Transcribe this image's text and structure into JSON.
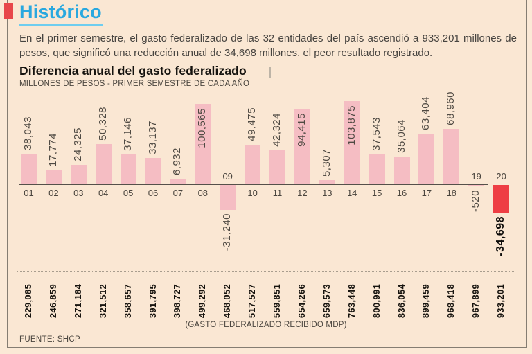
{
  "header": {
    "title": "Histórico"
  },
  "intro": "En el primer semestre, el gasto federalizado de las 32 entidades del país ascendió a 933,201 millones de pesos, que significó una reducción anual de 34,698 millones, el peor resultado registrado.",
  "chart_data": {
    "type": "bar",
    "title": "Diferencia anual del gasto federalizado",
    "subtitle": "MILLONES DE PESOS - PRIMER SEMESTRE DE CADA AÑO",
    "categories": [
      "01",
      "02",
      "03",
      "04",
      "05",
      "06",
      "07",
      "08",
      "09",
      "10",
      "11",
      "12",
      "13",
      "14",
      "15",
      "16",
      "17",
      "18",
      "19",
      "20"
    ],
    "values": [
      38043,
      17774,
      24325,
      50328,
      37146,
      33137,
      6932,
      100565,
      -31240,
      49475,
      42324,
      94415,
      5307,
      103875,
      37543,
      35064,
      63404,
      68960,
      -520,
      -34698
    ],
    "value_labels": [
      "38,043",
      "17,774",
      "24,325",
      "50,328",
      "37,146",
      "33,137",
      "6,932",
      "100,565",
      "-31,240",
      "49,475",
      "42,324",
      "94,415",
      "5,307",
      "103,875",
      "37,543",
      "35,064",
      "63,404",
      "68,960",
      "-520",
      "-34,698"
    ],
    "highlight_index": 19,
    "ylim": [
      -40000,
      110000
    ],
    "grid": false,
    "legend": false,
    "bottom_axis_note": "(GASTO FEDERALIZADO RECIBIDO MDP)",
    "received_values": [
      229085,
      246859,
      271184,
      321512,
      358657,
      391795,
      398727,
      499292,
      468052,
      517527,
      559851,
      654266,
      659573,
      763448,
      800991,
      836054,
      899459,
      968418,
      967899,
      933201
    ],
    "received_labels": [
      "229,085",
      "246,859",
      "271,184",
      "321,512",
      "358,657",
      "391,795",
      "398,727",
      "499,292",
      "468,052",
      "517,527",
      "559,851",
      "654,266",
      "659,573",
      "763,448",
      "800,991",
      "836,054",
      "899,459",
      "968,418",
      "967,899",
      "933,201"
    ]
  },
  "footer": {
    "source": "FUENTE: SHCP"
  },
  "colors": {
    "accent_blue": "#29a8df",
    "underline_blue": "#6fcdef",
    "flag_red": "#e8474b",
    "bar_pink": "#f5bdc3",
    "bar_negative_red": "#ee3e44",
    "background": "#fae7d3",
    "text_dark": "#474440"
  }
}
